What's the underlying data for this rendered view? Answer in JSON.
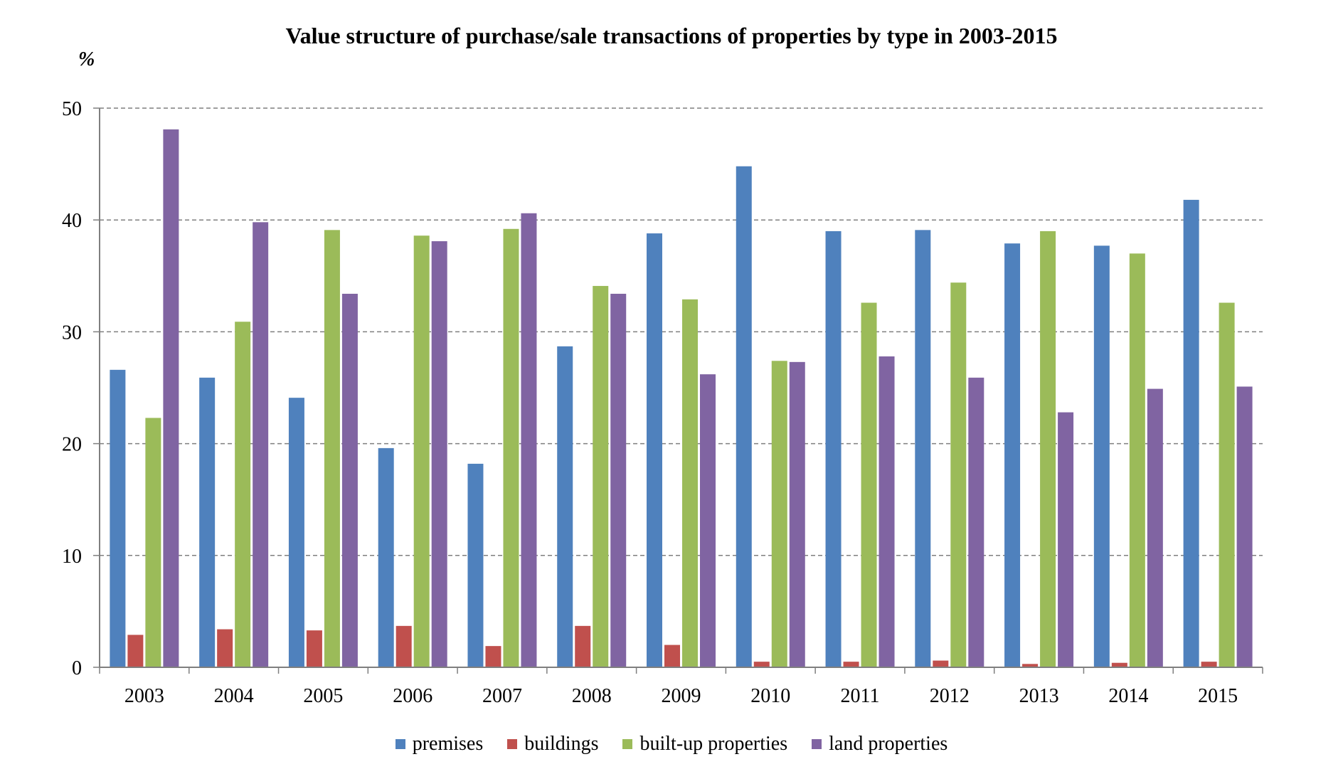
{
  "chart_data": {
    "type": "bar",
    "title": "Value structure of purchase/sale transactions of properties by type in 2003-2015",
    "ylabel": "%",
    "xlabel": "",
    "ylim": [
      0,
      50
    ],
    "yticks": [
      "0",
      "10",
      "20",
      "30",
      "40",
      "50"
    ],
    "grid": true,
    "legend_position": "bottom",
    "categories": [
      "2003",
      "2004",
      "2005",
      "2006",
      "2007",
      "2008",
      "2009",
      "2010",
      "2011",
      "2012",
      "2013",
      "2014",
      "2015"
    ],
    "series": [
      {
        "name": "premises",
        "color": "#4F81BD",
        "values": [
          26.6,
          25.9,
          24.1,
          19.6,
          18.2,
          28.7,
          38.8,
          44.8,
          39.0,
          39.1,
          37.9,
          37.7,
          41.8
        ]
      },
      {
        "name": "buildings",
        "color": "#C0504D",
        "values": [
          2.9,
          3.4,
          3.3,
          3.7,
          1.9,
          3.7,
          2.0,
          0.5,
          0.5,
          0.6,
          0.3,
          0.4,
          0.5
        ]
      },
      {
        "name": "built-up properties",
        "color": "#9BBB59",
        "values": [
          22.3,
          30.9,
          39.1,
          38.6,
          39.2,
          34.1,
          32.9,
          27.4,
          32.6,
          34.4,
          39.0,
          37.0,
          32.6
        ]
      },
      {
        "name": "land properties",
        "color": "#8064A2",
        "values": [
          48.1,
          39.8,
          33.4,
          38.1,
          40.6,
          33.4,
          26.2,
          27.3,
          27.8,
          25.9,
          22.8,
          24.9,
          25.1
        ]
      }
    ]
  }
}
